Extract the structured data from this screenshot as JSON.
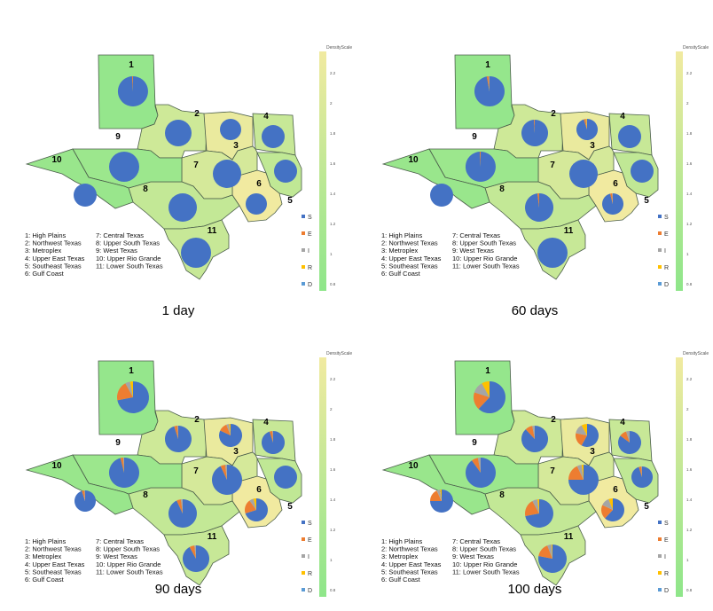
{
  "colorbar": {
    "title": "DensityScale",
    "ticks_panel1": [
      "2.2",
      "2",
      "1.8",
      "1.6",
      "1.4",
      "1.2",
      "1",
      "0.8"
    ],
    "ticks_panel2": [
      "2.2",
      "2",
      "1.8",
      "1.6",
      "1.4",
      "1.2",
      "1",
      "0.8"
    ],
    "ticks_panel3": [
      "2.2",
      "2",
      "1.8",
      "1.6",
      "1.4",
      "1.2",
      "1",
      "0.8"
    ],
    "ticks_panel4": [
      "2.2",
      "2",
      "1.8",
      "1.6",
      "1.4",
      "1.2",
      "1",
      "0.8"
    ],
    "low_color": "#8ee68a",
    "high_color": "#f1eaa0"
  },
  "pie_key": [
    {
      "label": "S",
      "color": "#4472c4"
    },
    {
      "label": "E",
      "color": "#ed7d31"
    },
    {
      "label": "I",
      "color": "#a5a5a5"
    },
    {
      "label": "R",
      "color": "#ffc000"
    },
    {
      "label": "D",
      "color": "#5b9bd5"
    }
  ],
  "region_legend": [
    "1: High Plains",
    "2: Northwest Texas",
    "3: Metroplex",
    "4: Upper East Texas",
    "5: Southeast Texas",
    "6: Gulf Coast",
    "7: Central Texas",
    "8: Upper South Texas",
    "9: West Texas",
    "10: Upper Rio Grande",
    "11: Lower South Texas"
  ],
  "region_numbers": [
    "1",
    "2",
    "3",
    "4",
    "5",
    "6",
    "7",
    "8",
    "9",
    "10",
    "11"
  ],
  "panels": [
    {
      "caption": "1 day",
      "density": [
        0.9,
        1.7,
        2.1,
        1.6,
        1.5,
        2.2,
        1.8,
        1.55,
        1.0,
        0.95,
        1.6
      ],
      "pies": [
        {
          "S": 0.99,
          "E": 0.01,
          "I": 0,
          "R": 0,
          "D": 0
        },
        {
          "S": 1,
          "E": 0,
          "I": 0,
          "R": 0,
          "D": 0
        },
        {
          "S": 1,
          "E": 0,
          "I": 0,
          "R": 0,
          "D": 0
        },
        {
          "S": 1,
          "E": 0,
          "I": 0,
          "R": 0,
          "D": 0
        },
        {
          "S": 1,
          "E": 0,
          "I": 0,
          "R": 0,
          "D": 0
        },
        {
          "S": 1,
          "E": 0,
          "I": 0,
          "R": 0,
          "D": 0
        },
        {
          "S": 1,
          "E": 0,
          "I": 0,
          "R": 0,
          "D": 0
        },
        {
          "S": 1,
          "E": 0,
          "I": 0,
          "R": 0,
          "D": 0
        },
        {
          "S": 1,
          "E": 0,
          "I": 0,
          "R": 0,
          "D": 0
        },
        {
          "S": 1,
          "E": 0,
          "I": 0,
          "R": 0,
          "D": 0
        },
        {
          "S": 1,
          "E": 0,
          "I": 0,
          "R": 0,
          "D": 0
        }
      ]
    },
    {
      "caption": "60 days",
      "density": [
        0.9,
        1.7,
        2.1,
        1.6,
        1.5,
        2.2,
        1.8,
        1.55,
        1.0,
        0.95,
        1.6
      ],
      "pies": [
        {
          "S": 0.97,
          "E": 0.02,
          "I": 0.01,
          "R": 0,
          "D": 0
        },
        {
          "S": 0.99,
          "E": 0.01,
          "I": 0,
          "R": 0,
          "D": 0
        },
        {
          "S": 0.95,
          "E": 0.03,
          "I": 0.01,
          "R": 0.01,
          "D": 0
        },
        {
          "S": 1,
          "E": 0,
          "I": 0,
          "R": 0,
          "D": 0
        },
        {
          "S": 1,
          "E": 0,
          "I": 0,
          "R": 0,
          "D": 0
        },
        {
          "S": 0.96,
          "E": 0.03,
          "I": 0.01,
          "R": 0,
          "D": 0
        },
        {
          "S": 1,
          "E": 0,
          "I": 0,
          "R": 0,
          "D": 0
        },
        {
          "S": 0.98,
          "E": 0.02,
          "I": 0,
          "R": 0,
          "D": 0
        },
        {
          "S": 0.99,
          "E": 0.01,
          "I": 0,
          "R": 0,
          "D": 0
        },
        {
          "S": 1,
          "E": 0,
          "I": 0,
          "R": 0,
          "D": 0
        },
        {
          "S": 1,
          "E": 0,
          "I": 0,
          "R": 0,
          "D": 0
        }
      ]
    },
    {
      "caption": "90 days",
      "density": [
        0.9,
        1.7,
        2.1,
        1.6,
        1.5,
        2.2,
        1.8,
        1.55,
        1.0,
        0.95,
        1.6
      ],
      "pies": [
        {
          "S": 0.72,
          "E": 0.2,
          "I": 0.05,
          "R": 0.03,
          "D": 0
        },
        {
          "S": 0.95,
          "E": 0.04,
          "I": 0.01,
          "R": 0,
          "D": 0
        },
        {
          "S": 0.82,
          "E": 0.12,
          "I": 0.04,
          "R": 0.02,
          "D": 0
        },
        {
          "S": 0.95,
          "E": 0.04,
          "I": 0.01,
          "R": 0,
          "D": 0
        },
        {
          "S": 1,
          "E": 0,
          "I": 0,
          "R": 0,
          "D": 0
        },
        {
          "S": 0.7,
          "E": 0.2,
          "I": 0.06,
          "R": 0.04,
          "D": 0
        },
        {
          "S": 0.93,
          "E": 0.05,
          "I": 0.02,
          "R": 0,
          "D": 0
        },
        {
          "S": 0.93,
          "E": 0.05,
          "I": 0.02,
          "R": 0,
          "D": 0
        },
        {
          "S": 0.96,
          "E": 0.03,
          "I": 0.01,
          "R": 0,
          "D": 0
        },
        {
          "S": 0.95,
          "E": 0.04,
          "I": 0.01,
          "R": 0,
          "D": 0
        },
        {
          "S": 0.92,
          "E": 0.06,
          "I": 0.02,
          "R": 0,
          "D": 0
        }
      ]
    },
    {
      "caption": "100 days",
      "density": [
        0.9,
        1.7,
        2.1,
        1.6,
        1.5,
        2.2,
        1.8,
        1.55,
        1.0,
        0.95,
        1.6
      ],
      "pies": [
        {
          "S": 0.62,
          "E": 0.18,
          "I": 0.12,
          "R": 0.08,
          "D": 0
        },
        {
          "S": 0.88,
          "E": 0.09,
          "I": 0.03,
          "R": 0,
          "D": 0
        },
        {
          "S": 0.58,
          "E": 0.2,
          "I": 0.14,
          "R": 0.08,
          "D": 0
        },
        {
          "S": 0.85,
          "E": 0.1,
          "I": 0.05,
          "R": 0,
          "D": 0
        },
        {
          "S": 0.95,
          "E": 0.04,
          "I": 0.01,
          "R": 0,
          "D": 0
        },
        {
          "S": 0.62,
          "E": 0.2,
          "I": 0.12,
          "R": 0.06,
          "D": 0
        },
        {
          "S": 0.75,
          "E": 0.18,
          "I": 0.05,
          "R": 0.02,
          "D": 0
        },
        {
          "S": 0.72,
          "E": 0.2,
          "I": 0.06,
          "R": 0.02,
          "D": 0
        },
        {
          "S": 0.9,
          "E": 0.07,
          "I": 0.03,
          "R": 0,
          "D": 0
        },
        {
          "S": 0.75,
          "E": 0.18,
          "I": 0.05,
          "R": 0.02,
          "D": 0
        },
        {
          "S": 0.78,
          "E": 0.16,
          "I": 0.05,
          "R": 0.01,
          "D": 0
        }
      ]
    }
  ]
}
